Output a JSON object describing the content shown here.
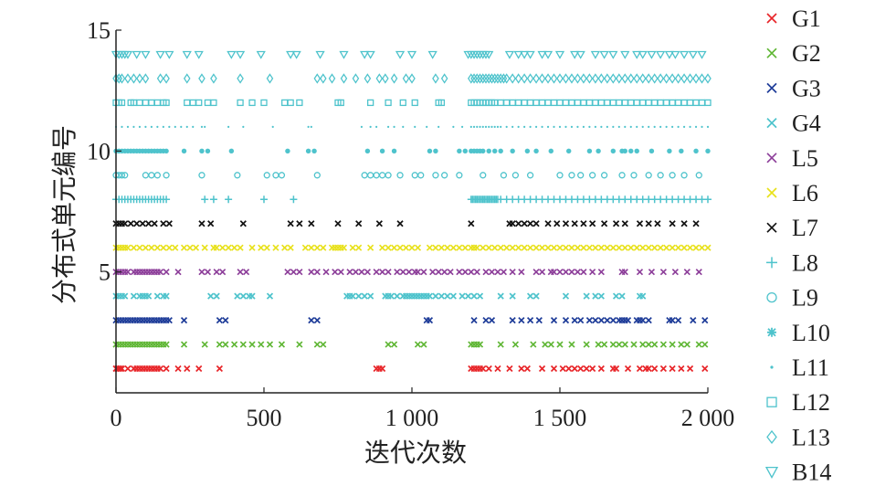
{
  "chart_data": {
    "type": "scatter",
    "xlabel": "迭代次数",
    "ylabel": "分布式单元编号",
    "xlim": [
      0,
      2000
    ],
    "ylim": [
      0,
      15
    ],
    "x_ticks": [
      0,
      500,
      1000,
      1500,
      2000
    ],
    "x_tick_labels": [
      "0",
      "500",
      "1 000",
      "1 500",
      "2 000"
    ],
    "y_ticks": [
      5,
      10,
      15
    ],
    "y_tick_labels": [
      "5",
      "10",
      "15"
    ],
    "legend_position": "right",
    "grid": false,
    "series": [
      {
        "name": "G1",
        "y": 1,
        "marker": "x",
        "color": "#e8262a",
        "x": [
          0,
          5,
          10,
          15,
          20,
          40,
          60,
          70,
          80,
          90,
          100,
          110,
          120,
          130,
          140,
          150,
          170,
          210,
          240,
          280,
          350,
          880,
          890,
          900,
          1200,
          1210,
          1220,
          1230,
          1240,
          1260,
          1290,
          1330,
          1370,
          1390,
          1440,
          1480,
          1510,
          1530,
          1550,
          1570,
          1590,
          1610,
          1640,
          1680,
          1690,
          1730,
          1770,
          1790,
          1800,
          1820,
          1850,
          1880,
          1910,
          1940,
          1990
        ]
      },
      {
        "name": "G2",
        "y": 2,
        "marker": "x",
        "color": "#5fb634",
        "x": [
          0,
          10,
          20,
          30,
          40,
          50,
          60,
          70,
          80,
          90,
          100,
          110,
          120,
          130,
          140,
          150,
          160,
          170,
          230,
          300,
          350,
          370,
          400,
          430,
          460,
          490,
          520,
          560,
          620,
          680,
          700,
          920,
          940,
          1020,
          1040,
          1200,
          1210,
          1220,
          1230,
          1300,
          1350,
          1410,
          1450,
          1470,
          1500,
          1540,
          1590,
          1630,
          1650,
          1680,
          1700,
          1720,
          1750,
          1780,
          1800,
          1820,
          1850,
          1880,
          1910,
          1930,
          1970,
          1990
        ]
      },
      {
        "name": "G3",
        "y": 3,
        "marker": "x",
        "color": "#1f3d99",
        "x": [
          0,
          10,
          20,
          30,
          40,
          50,
          60,
          70,
          80,
          90,
          100,
          110,
          120,
          130,
          140,
          150,
          160,
          170,
          180,
          230,
          350,
          370,
          660,
          680,
          1050,
          1060,
          1210,
          1250,
          1270,
          1340,
          1370,
          1400,
          1430,
          1480,
          1520,
          1550,
          1570,
          1600,
          1620,
          1640,
          1660,
          1680,
          1700,
          1710,
          1720,
          1730,
          1760,
          1770,
          1780,
          1800,
          1870,
          1880,
          1900,
          1950,
          1990
        ]
      },
      {
        "name": "G4",
        "y": 4,
        "marker": "x",
        "color": "#4ec3cc",
        "x": [
          0,
          10,
          20,
          30,
          60,
          80,
          90,
          100,
          110,
          140,
          160,
          170,
          320,
          340,
          410,
          430,
          450,
          460,
          520,
          780,
          790,
          800,
          820,
          840,
          860,
          910,
          920,
          930,
          950,
          970,
          980,
          990,
          1000,
          1010,
          1020,
          1030,
          1040,
          1050,
          1060,
          1080,
          1100,
          1120,
          1140,
          1170,
          1190,
          1210,
          1230,
          1300,
          1340,
          1400,
          1420,
          1520,
          1590,
          1620,
          1640,
          1690,
          1710,
          1770,
          1780
        ]
      },
      {
        "name": "L5",
        "y": 5,
        "marker": "x",
        "color": "#8d3f9a",
        "x": [
          0,
          10,
          20,
          30,
          40,
          60,
          70,
          80,
          90,
          100,
          110,
          120,
          130,
          140,
          150,
          170,
          210,
          290,
          310,
          340,
          360,
          420,
          440,
          580,
          600,
          620,
          660,
          680,
          710,
          740,
          760,
          790,
          810,
          830,
          850,
          880,
          900,
          920,
          950,
          970,
          990,
          1010,
          1020,
          1040,
          1070,
          1090,
          1110,
          1130,
          1160,
          1180,
          1200,
          1220,
          1250,
          1270,
          1290,
          1310,
          1340,
          1370,
          1420,
          1440,
          1470,
          1480,
          1500,
          1520,
          1540,
          1560,
          1580,
          1610,
          1640,
          1710,
          1720,
          1770,
          1810,
          1850,
          1890,
          1930,
          1970
        ]
      },
      {
        "name": "L6",
        "y": 6,
        "marker": "x",
        "color": "#e8e11b",
        "x": [
          0,
          10,
          20,
          30,
          40,
          60,
          80,
          100,
          120,
          140,
          160,
          180,
          200,
          230,
          250,
          270,
          300,
          330,
          340,
          360,
          380,
          400,
          420,
          460,
          490,
          510,
          540,
          570,
          590,
          640,
          660,
          680,
          700,
          730,
          740,
          750,
          760,
          770,
          800,
          820,
          860,
          900,
          920,
          940,
          960,
          980,
          1000,
          1020,
          1060,
          1080,
          1100,
          1120,
          1140,
          1160,
          1180,
          1200,
          1210,
          1220,
          1240,
          1260,
          1280,
          1300,
          1320,
          1340,
          1360,
          1380,
          1400,
          1420,
          1440,
          1460,
          1480,
          1500,
          1520,
          1540,
          1560,
          1580,
          1600,
          1620,
          1640,
          1660,
          1680,
          1700,
          1720,
          1740,
          1760,
          1780,
          1800,
          1820,
          1840,
          1860,
          1880,
          1900,
          1920,
          1940,
          1960,
          1980,
          2000
        ]
      },
      {
        "name": "L7",
        "y": 7,
        "marker": "x",
        "color": "#111111",
        "x": [
          0,
          10,
          20,
          30,
          50,
          70,
          90,
          110,
          130,
          160,
          180,
          290,
          320,
          430,
          590,
          620,
          660,
          750,
          820,
          890,
          960,
          1200,
          1330,
          1340,
          1360,
          1380,
          1400,
          1420,
          1460,
          1490,
          1520,
          1550,
          1580,
          1610,
          1650,
          1690,
          1720,
          1770,
          1800,
          1830,
          1880,
          1920,
          1960
        ]
      },
      {
        "name": "L8",
        "y": 8,
        "marker": "+",
        "color": "#4ec3cc",
        "x": [
          0,
          10,
          20,
          30,
          40,
          50,
          60,
          70,
          80,
          90,
          100,
          110,
          120,
          130,
          140,
          150,
          160,
          170,
          300,
          330,
          380,
          500,
          600,
          1200,
          1205,
          1210,
          1215,
          1220,
          1225,
          1230,
          1235,
          1240,
          1245,
          1250,
          1255,
          1260,
          1265,
          1270,
          1275,
          1280,
          1285,
          1290,
          1300,
          1320,
          1340,
          1360,
          1380,
          1400,
          1420,
          1440,
          1460,
          1480,
          1500,
          1520,
          1540,
          1560,
          1580,
          1600,
          1620,
          1640,
          1660,
          1680,
          1700,
          1720,
          1740,
          1760,
          1780,
          1800,
          1820,
          1840,
          1860,
          1880,
          1900,
          1920,
          1940,
          1960,
          1980,
          2000
        ]
      },
      {
        "name": "L9",
        "y": 9,
        "marker": "o",
        "color": "#4ec3cc",
        "x": [
          0,
          10,
          20,
          30,
          100,
          120,
          140,
          170,
          290,
          410,
          510,
          540,
          560,
          680,
          840,
          860,
          880,
          900,
          920,
          960,
          1010,
          1030,
          1080,
          1110,
          1160,
          1240,
          1310,
          1350,
          1400,
          1500,
          1540,
          1570,
          1610,
          1650,
          1710,
          1750,
          1800,
          1840,
          1880,
          1920,
          1970
        ]
      },
      {
        "name": "L10",
        "y": 10,
        "marker": "*",
        "color": "#4ec3cc",
        "x": [
          0,
          10,
          20,
          30,
          40,
          50,
          60,
          70,
          80,
          90,
          100,
          110,
          120,
          130,
          140,
          150,
          160,
          170,
          230,
          290,
          310,
          390,
          580,
          650,
          670,
          850,
          900,
          940,
          1060,
          1080,
          1160,
          1180,
          1200,
          1210,
          1220,
          1230,
          1240,
          1260,
          1280,
          1300,
          1340,
          1390,
          1420,
          1470,
          1530,
          1600,
          1630,
          1680,
          1710,
          1720,
          1740,
          1760,
          1810,
          1870,
          1910,
          1960,
          2000
        ]
      },
      {
        "name": "L11",
        "y": 11,
        "marker": ".",
        "color": "#4ec3cc",
        "x": [
          0,
          20,
          40,
          60,
          80,
          100,
          120,
          140,
          160,
          180,
          200,
          220,
          240,
          260,
          290,
          300,
          380,
          430,
          530,
          650,
          660,
          830,
          860,
          880,
          920,
          940,
          970,
          1010,
          1050,
          1090,
          1140,
          1170,
          1200,
          1210,
          1220,
          1230,
          1240,
          1250,
          1260,
          1270,
          1280,
          1290,
          1300,
          1320,
          1340,
          1360,
          1380,
          1400,
          1420,
          1440,
          1460,
          1480,
          1500,
          1520,
          1540,
          1560,
          1580,
          1600,
          1620,
          1640,
          1660,
          1680,
          1700,
          1720,
          1740,
          1760,
          1780,
          1800,
          1820,
          1840,
          1860,
          1880,
          1900,
          1920,
          1940,
          1960,
          1980,
          2000
        ]
      },
      {
        "name": "L12",
        "y": 12,
        "marker": "s",
        "color": "#4ec3cc",
        "x": [
          0,
          10,
          20,
          50,
          60,
          80,
          100,
          120,
          140,
          160,
          170,
          240,
          260,
          280,
          310,
          330,
          420,
          460,
          500,
          570,
          590,
          620,
          750,
          760,
          860,
          920,
          970,
          1010,
          1090,
          1100,
          1200,
          1210,
          1220,
          1230,
          1240,
          1250,
          1260,
          1270,
          1280,
          1300,
          1320,
          1340,
          1360,
          1380,
          1400,
          1420,
          1440,
          1460,
          1480,
          1500,
          1520,
          1540,
          1560,
          1580,
          1600,
          1620,
          1640,
          1660,
          1680,
          1700,
          1720,
          1740,
          1760,
          1780,
          1800,
          1820,
          1840,
          1860,
          1880,
          1900,
          1920,
          1940,
          1960,
          1980,
          2000
        ]
      },
      {
        "name": "L13",
        "y": 13,
        "marker": "d",
        "color": "#4ec3cc",
        "x": [
          0,
          10,
          20,
          40,
          60,
          80,
          100,
          150,
          170,
          240,
          290,
          330,
          420,
          520,
          680,
          700,
          730,
          770,
          810,
          850,
          890,
          910,
          940,
          980,
          1000,
          1080,
          1110,
          1200,
          1210,
          1220,
          1230,
          1240,
          1250,
          1260,
          1270,
          1280,
          1290,
          1300,
          1310,
          1320,
          1340,
          1360,
          1380,
          1400,
          1420,
          1440,
          1460,
          1480,
          1500,
          1520,
          1540,
          1560,
          1580,
          1600,
          1620,
          1640,
          1660,
          1680,
          1700,
          1720,
          1740,
          1760,
          1780,
          1800,
          1820,
          1840,
          1860,
          1880,
          1900,
          1920,
          1940,
          1960,
          1980,
          2000
        ]
      },
      {
        "name": "B14",
        "y": 14,
        "marker": "v",
        "color": "#4ec3cc",
        "x": [
          0,
          10,
          20,
          30,
          40,
          70,
          100,
          150,
          180,
          240,
          280,
          390,
          420,
          490,
          590,
          610,
          690,
          770,
          840,
          860,
          960,
          1000,
          1070,
          1190,
          1200,
          1210,
          1220,
          1230,
          1240,
          1250,
          1260,
          1330,
          1360,
          1380,
          1400,
          1440,
          1460,
          1500,
          1550,
          1570,
          1620,
          1650,
          1680,
          1720,
          1760,
          1780,
          1810,
          1840,
          1870,
          1890,
          1920,
          1950,
          1980
        ]
      }
    ]
  }
}
